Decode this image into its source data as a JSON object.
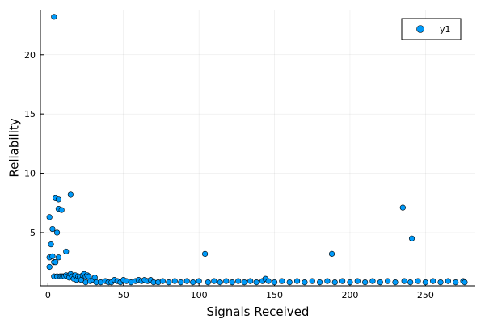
{
  "chart_data": {
    "type": "scatter",
    "xlabel": "Signals Received",
    "ylabel": "Reliability",
    "xlim": [
      -5,
      283
    ],
    "ylim": [
      0.5,
      23.8
    ],
    "xticks": [
      0,
      50,
      100,
      150,
      200,
      250
    ],
    "yticks": [
      5,
      10,
      15,
      20
    ],
    "grid": true,
    "legend_position": "top-right",
    "marker_color": "#009af9",
    "series": [
      {
        "name": "y1",
        "points": [
          [
            1,
            2.1
          ],
          [
            1,
            6.3
          ],
          [
            1,
            2.9
          ],
          [
            2,
            4.0
          ],
          [
            3,
            5.3
          ],
          [
            3,
            3.0
          ],
          [
            4,
            23.2
          ],
          [
            4,
            1.3
          ],
          [
            4,
            2.5
          ],
          [
            5,
            7.9
          ],
          [
            5,
            2.5
          ],
          [
            6,
            5.0
          ],
          [
            6,
            1.3
          ],
          [
            7,
            7.8
          ],
          [
            7,
            2.9
          ],
          [
            7,
            7.0
          ],
          [
            8,
            1.3
          ],
          [
            9,
            6.9
          ],
          [
            9,
            1.3
          ],
          [
            10,
            1.3
          ],
          [
            11,
            1.3
          ],
          [
            12,
            3.4
          ],
          [
            12,
            1.4
          ],
          [
            13,
            1.3
          ],
          [
            14,
            1.2
          ],
          [
            15,
            8.2
          ],
          [
            15,
            1.5
          ],
          [
            16,
            1.3
          ],
          [
            17,
            1.1
          ],
          [
            18,
            1.4
          ],
          [
            19,
            1.0
          ],
          [
            20,
            1.3
          ],
          [
            21,
            1.2
          ],
          [
            22,
            1.0
          ],
          [
            23,
            1.4
          ],
          [
            24,
            1.5
          ],
          [
            25,
            0.8
          ],
          [
            25,
            1.3
          ],
          [
            26,
            1.4
          ],
          [
            27,
            1.3
          ],
          [
            28,
            0.9
          ],
          [
            30,
            1.0
          ],
          [
            31,
            1.2
          ],
          [
            32,
            0.8
          ],
          [
            35,
            0.8
          ],
          [
            38,
            0.9
          ],
          [
            40,
            0.8
          ],
          [
            42,
            0.8
          ],
          [
            44,
            1.0
          ],
          [
            46,
            0.9
          ],
          [
            48,
            0.8
          ],
          [
            50,
            1.0
          ],
          [
            52,
            0.9
          ],
          [
            55,
            0.8
          ],
          [
            58,
            0.9
          ],
          [
            60,
            1.0
          ],
          [
            62,
            0.9
          ],
          [
            64,
            1.0
          ],
          [
            66,
            0.9
          ],
          [
            68,
            1.0
          ],
          [
            70,
            0.8
          ],
          [
            73,
            0.8
          ],
          [
            76,
            0.9
          ],
          [
            80,
            0.8
          ],
          [
            84,
            0.9
          ],
          [
            88,
            0.8
          ],
          [
            92,
            0.9
          ],
          [
            96,
            0.8
          ],
          [
            100,
            0.9
          ],
          [
            104,
            3.2
          ],
          [
            106,
            0.8
          ],
          [
            110,
            0.9
          ],
          [
            114,
            0.8
          ],
          [
            118,
            0.9
          ],
          [
            122,
            0.8
          ],
          [
            126,
            0.9
          ],
          [
            130,
            0.8
          ],
          [
            134,
            0.9
          ],
          [
            138,
            0.8
          ],
          [
            142,
            0.9
          ],
          [
            144,
            1.1
          ],
          [
            146,
            0.9
          ],
          [
            150,
            0.8
          ],
          [
            155,
            0.9
          ],
          [
            160,
            0.8
          ],
          [
            165,
            0.9
          ],
          [
            170,
            0.8
          ],
          [
            175,
            0.9
          ],
          [
            180,
            0.8
          ],
          [
            185,
            0.9
          ],
          [
            188,
            3.2
          ],
          [
            190,
            0.8
          ],
          [
            195,
            0.9
          ],
          [
            200,
            0.8
          ],
          [
            205,
            0.9
          ],
          [
            210,
            0.8
          ],
          [
            215,
            0.9
          ],
          [
            220,
            0.8
          ],
          [
            225,
            0.9
          ],
          [
            230,
            0.8
          ],
          [
            235,
            7.1
          ],
          [
            236,
            0.9
          ],
          [
            240,
            0.8
          ],
          [
            241,
            4.5
          ],
          [
            245,
            0.9
          ],
          [
            250,
            0.8
          ],
          [
            255,
            0.9
          ],
          [
            260,
            0.8
          ],
          [
            265,
            0.9
          ],
          [
            270,
            0.8
          ],
          [
            275,
            0.9
          ],
          [
            276,
            0.8
          ]
        ]
      }
    ]
  }
}
